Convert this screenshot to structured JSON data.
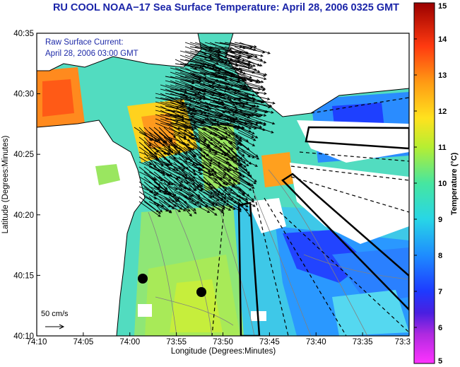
{
  "title": "RU COOL  NOAA−17  Sea Surface Temperature:  April 28, 2006 0325 GMT",
  "current_note": {
    "line1": "Raw Surface Current:",
    "line2": "April 28, 2006 03:00 GMT"
  },
  "x_axis": {
    "title": "Longitude (Degrees:Minutes)",
    "ticks": [
      "74:10",
      "74:05",
      "74:00",
      "73:55",
      "73:50",
      "73:45",
      "73:40",
      "73:35",
      "73:3"
    ]
  },
  "y_axis": {
    "title": "Latitude (Degrees:Minutes)",
    "ticks": [
      "40:35",
      "40:30",
      "40:25",
      "40:20",
      "40:15",
      "40:10"
    ]
  },
  "colorbar": {
    "title": "Temperature (°C)",
    "ticks": [
      "15",
      "14",
      "13",
      "12",
      "11",
      "10",
      "9",
      "8",
      "7",
      "6",
      "5"
    ],
    "range": [
      5,
      15
    ],
    "colors": [
      "#ff33ff",
      "#8a1fd1",
      "#1e2bff",
      "#1e8cff",
      "#28e0e0",
      "#4ee69a",
      "#c9ee2a",
      "#ffd21e",
      "#ff8a14",
      "#ff2a10",
      "#a80000"
    ]
  },
  "scale_bar": {
    "label": "50 cm/s"
  },
  "colors": {
    "title": "#1a24a8",
    "land": "#ffffff",
    "frame": "#000000"
  }
}
